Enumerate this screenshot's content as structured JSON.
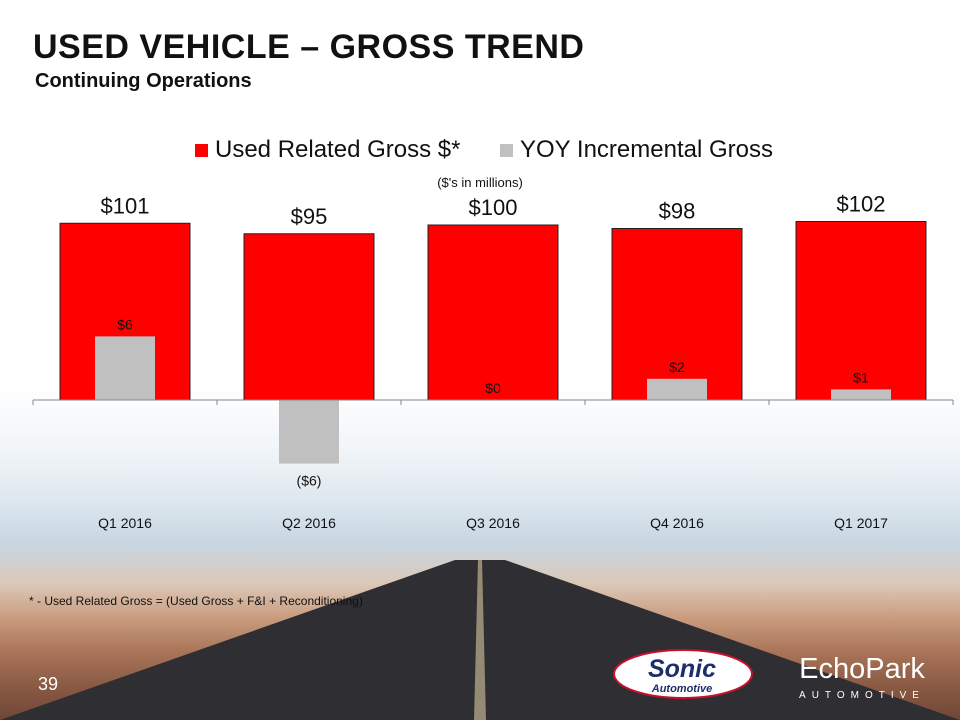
{
  "title": "USED VEHICLE – GROSS TREND",
  "subtitle": "Continuing Operations",
  "units_note": "($'s in millions)",
  "footnote": "* - Used Related Gross  = (Used Gross + F&I + Reconditioning)",
  "page_number": "39",
  "logos": {
    "sonic_line1": "Sonic",
    "sonic_line2": "Automotive",
    "echopark_line1": "EchoPark",
    "echopark_line2": "AUTOMOTIVE"
  },
  "colors": {
    "used_gross": "#ff0000",
    "yoy_gross": "#c0c0c0"
  },
  "chart_data": {
    "type": "bar",
    "title": "",
    "xlabel": "",
    "ylabel": "",
    "categories": [
      "Q1 2016",
      "Q2 2016",
      "Q3 2016",
      "Q4 2016",
      "Q1 2017"
    ],
    "series": [
      {
        "name": "Used Related Gross $*",
        "values": [
          101,
          95,
          100,
          98,
          102
        ],
        "labels": [
          "$101",
          "$95",
          "$100",
          "$98",
          "$102"
        ]
      },
      {
        "name": "YOY Incremental Gross",
        "values": [
          6,
          -6,
          0,
          2,
          1
        ],
        "labels": [
          "$6",
          "($6)",
          "$0",
          "$2",
          "$1"
        ]
      }
    ],
    "ylim": [
      -10,
      102
    ],
    "grid": false,
    "legend": "top-center"
  }
}
